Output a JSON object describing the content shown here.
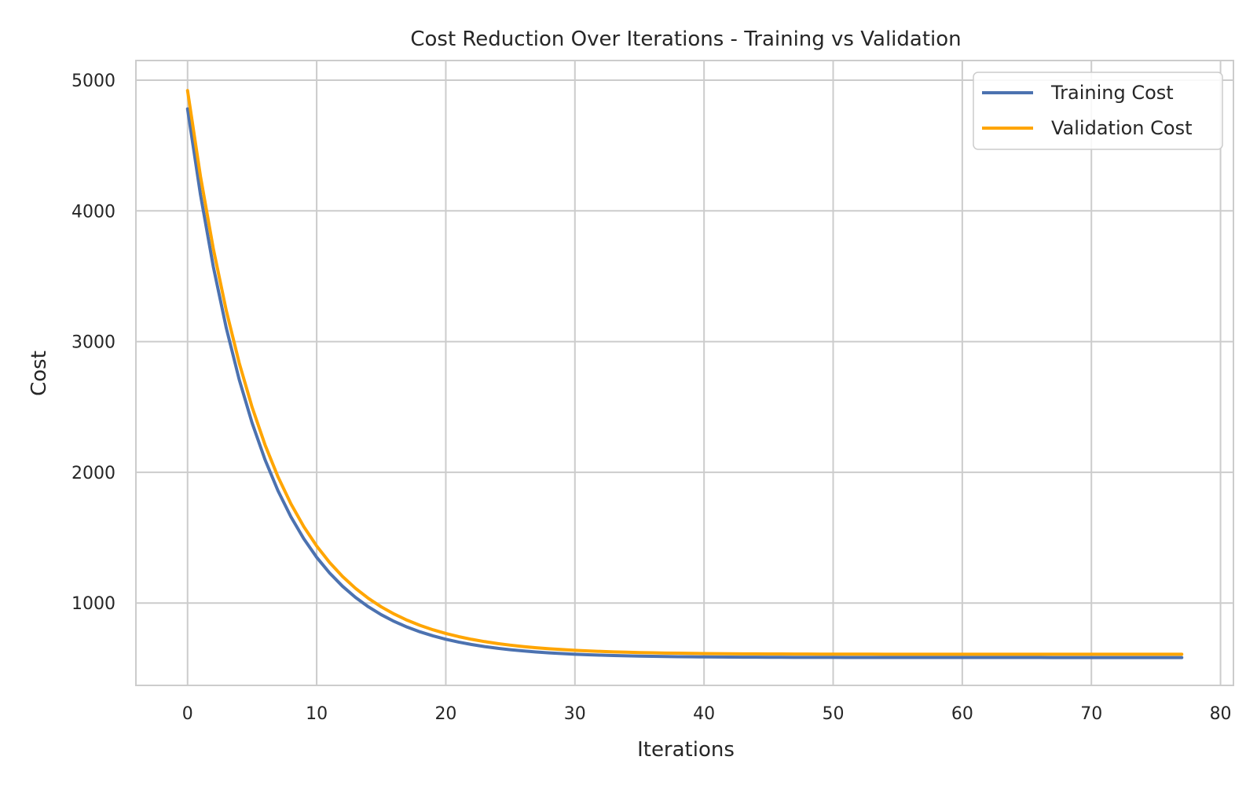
{
  "chart_data": {
    "type": "line",
    "title": "Cost Reduction Over Iterations - Training vs Validation",
    "xlabel": "Iterations",
    "ylabel": "Cost",
    "xlim": [
      -4,
      81
    ],
    "ylim": [
      370,
      5150
    ],
    "xticks": [
      0,
      10,
      20,
      30,
      40,
      50,
      60,
      70,
      80
    ],
    "yticks": [
      1000,
      2000,
      3000,
      4000,
      5000
    ],
    "grid": true,
    "legend_position": "upper-right",
    "series": [
      {
        "name": "Training Cost",
        "color": "#4c72b0",
        "model": {
          "type": "exponential_decay",
          "x_start": 0,
          "x_end": 77,
          "asymptote": 583,
          "initial": 4780,
          "rate": 0.17
        }
      },
      {
        "name": "Validation Cost",
        "color": "#ffa500",
        "model": {
          "type": "exponential_decay",
          "x_start": 0,
          "x_end": 77,
          "asymptote": 608,
          "initial": 4920,
          "rate": 0.165
        }
      }
    ]
  }
}
